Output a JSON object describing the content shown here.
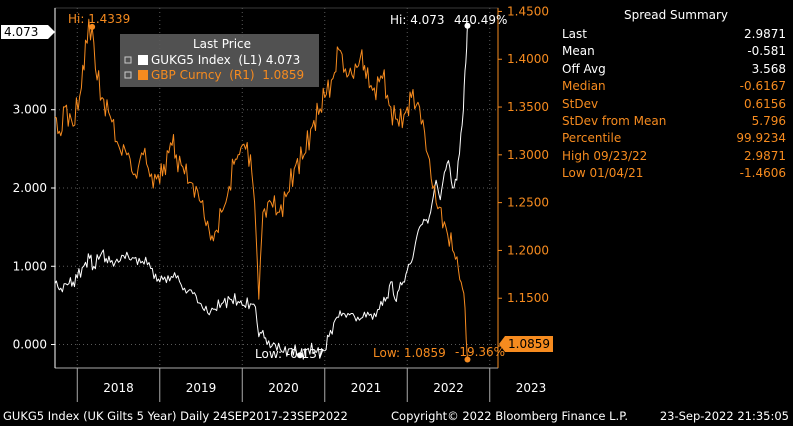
{
  "colors": {
    "left_series": "#ffffff",
    "right_series": "#f68b1f",
    "background": "#000000",
    "grid": "#5a5a5a",
    "legend_bg": "#5a5a5a"
  },
  "legend": {
    "title": "Last Price",
    "items": [
      {
        "icon": "expand-icon",
        "label": "GUKG5 Index  (L1) 4.073",
        "color": "#ffffff"
      },
      {
        "icon": "expand-icon",
        "label": "GBP Curncy  (R1)  1.0859",
        "color": "#f68b1f"
      }
    ]
  },
  "annotations": {
    "left_last_badge": "4.073",
    "right_last_badge": "1.0859",
    "gbp_hi": "Hi: 1.4339",
    "gukg5_hi": "Hi: 4.073",
    "gukg5_change": "440.49%",
    "gukg5_low": "Low: -0.137",
    "gbp_low": "Low: 1.0859",
    "gbp_change": "-19.36%"
  },
  "summary": {
    "title": "Spread Summary",
    "rows": [
      {
        "label": "Last",
        "value": "2.9871",
        "color": "white"
      },
      {
        "label": "Mean",
        "value": "-0.581",
        "color": "white"
      },
      {
        "label": "Off Avg",
        "value": "3.568",
        "color": "white"
      },
      {
        "label": "Median",
        "value": "-0.6167",
        "color": "orange"
      },
      {
        "label": "StDev",
        "value": "0.6156",
        "color": "orange"
      },
      {
        "label": "StDev from Mean",
        "value": "5.796",
        "color": "orange"
      },
      {
        "label": "Percentile",
        "value": "99.9234",
        "color": "orange"
      },
      {
        "label": "High 09/23/22",
        "value": "2.9871",
        "color": "orange"
      },
      {
        "label": "Low 01/04/21",
        "value": "-1.4606",
        "color": "orange"
      }
    ]
  },
  "footer": {
    "left": "GUKG5 Index (UK Gilts 5 Year)  Daily 24SEP2017-23SEP2022",
    "center": "Copyright© 2022 Bloomberg Finance L.P.",
    "right": "23-Sep-2022 21:35:05"
  },
  "chart_data": {
    "type": "line",
    "title": "",
    "x_range": [
      2017.73,
      2023.1
    ],
    "x_tick_labels": [
      "2018",
      "2019",
      "2020",
      "2021",
      "2022",
      "2023"
    ],
    "left_axis": {
      "ylim": [
        -0.3,
        4.3
      ],
      "tick_values": [
        0,
        1,
        2,
        3
      ],
      "tick_labels": [
        "0.000",
        "1.000",
        "2.000",
        "3.000"
      ]
    },
    "right_axis": {
      "ylim": [
        1.077,
        1.4536
      ],
      "tick_values": [
        1.1,
        1.15,
        1.2,
        1.25,
        1.3,
        1.35,
        1.4,
        1.45
      ],
      "tick_labels": [
        "1.1000",
        "1.1500",
        "1.2000",
        "1.2500",
        "1.3000",
        "1.3500",
        "1.4000",
        "1.4500"
      ]
    },
    "grid": true,
    "series": [
      {
        "name": "GUKG5 Index",
        "axis": "left",
        "color": "#ffffff",
        "x": [
          2017.73,
          2017.8,
          2017.9,
          2017.95,
          2018.0,
          2018.1,
          2018.15,
          2018.2,
          2018.3,
          2018.35,
          2018.4,
          2018.5,
          2018.6,
          2018.65,
          2018.75,
          2018.85,
          2018.95,
          2019.0,
          2019.1,
          2019.2,
          2019.3,
          2019.4,
          2019.5,
          2019.6,
          2019.65,
          2019.75,
          2019.85,
          2019.95,
          2020.0,
          2020.1,
          2020.16,
          2020.2,
          2020.25,
          2020.3,
          2020.4,
          2020.5,
          2020.6,
          2020.7,
          2020.8,
          2020.9,
          2021.0,
          2021.05,
          2021.15,
          2021.22,
          2021.3,
          2021.4,
          2021.5,
          2021.6,
          2021.7,
          2021.75,
          2021.8,
          2021.85,
          2021.9,
          2021.95,
          2022.0,
          2022.05,
          2022.1,
          2022.15,
          2022.2,
          2022.25,
          2022.3,
          2022.35,
          2022.4,
          2022.45,
          2022.5,
          2022.55,
          2022.6,
          2022.65,
          2022.68,
          2022.7,
          2022.72,
          2022.73
        ],
        "y": [
          0.78,
          0.72,
          0.78,
          0.8,
          0.85,
          1.05,
          1.1,
          1.0,
          1.18,
          1.1,
          1.05,
          1.05,
          1.18,
          1.08,
          1.1,
          1.02,
          0.9,
          0.8,
          0.88,
          0.85,
          0.72,
          0.65,
          0.52,
          0.38,
          0.45,
          0.52,
          0.58,
          0.55,
          0.5,
          0.52,
          0.48,
          0.1,
          0.18,
          0.0,
          0.0,
          -0.1,
          -0.05,
          -0.137,
          -0.05,
          -0.1,
          -0.08,
          0.1,
          0.35,
          0.4,
          0.38,
          0.35,
          0.35,
          0.4,
          0.5,
          0.6,
          0.8,
          0.58,
          0.7,
          0.8,
          0.95,
          1.05,
          1.3,
          1.5,
          1.6,
          1.55,
          1.8,
          2.1,
          1.85,
          2.2,
          2.35,
          2.0,
          2.1,
          2.7,
          3.0,
          3.5,
          3.8,
          4.073
        ]
      },
      {
        "name": "GBP Curncy",
        "axis": "right",
        "color": "#f68b1f",
        "x": [
          2017.73,
          2017.8,
          2017.85,
          2017.95,
          2018.05,
          2018.1,
          2018.18,
          2018.22,
          2018.3,
          2018.4,
          2018.5,
          2018.6,
          2018.7,
          2018.8,
          2018.9,
          2019.0,
          2019.05,
          2019.15,
          2019.2,
          2019.3,
          2019.4,
          2019.5,
          2019.6,
          2019.65,
          2019.75,
          2019.8,
          2019.9,
          2019.95,
          2020.0,
          2020.1,
          2020.15,
          2020.2,
          2020.22,
          2020.25,
          2020.35,
          2020.45,
          2020.55,
          2020.65,
          2020.75,
          2020.85,
          2021.0,
          2021.1,
          2021.17,
          2021.25,
          2021.35,
          2021.45,
          2021.5,
          2021.6,
          2021.7,
          2021.8,
          2021.9,
          2022.0,
          2022.05,
          2022.15,
          2022.25,
          2022.35,
          2022.45,
          2022.55,
          2022.62,
          2022.67,
          2022.7,
          2022.73
        ],
        "y": [
          1.34,
          1.32,
          1.35,
          1.33,
          1.37,
          1.42,
          1.4339,
          1.39,
          1.36,
          1.34,
          1.31,
          1.3,
          1.28,
          1.3,
          1.28,
          1.27,
          1.29,
          1.31,
          1.3,
          1.28,
          1.27,
          1.25,
          1.22,
          1.21,
          1.24,
          1.25,
          1.29,
          1.3,
          1.31,
          1.3,
          1.25,
          1.149,
          1.19,
          1.24,
          1.25,
          1.24,
          1.26,
          1.29,
          1.3,
          1.33,
          1.36,
          1.38,
          1.41,
          1.39,
          1.38,
          1.41,
          1.38,
          1.37,
          1.38,
          1.35,
          1.33,
          1.35,
          1.36,
          1.35,
          1.3,
          1.25,
          1.23,
          1.2,
          1.18,
          1.16,
          1.14,
          1.0859
        ]
      }
    ]
  }
}
